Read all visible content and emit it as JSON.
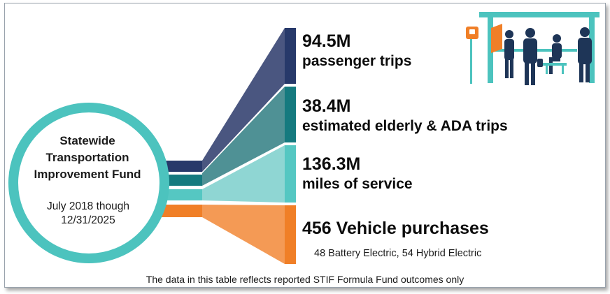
{
  "colors": {
    "circle_ring": "#4cc3be",
    "band_1": "#27396a",
    "band_2": "#157a7f",
    "band_3": "#55c7c2",
    "band_4": "#f07f27",
    "fill_1": "#4a5680",
    "fill_2": "#4f9195",
    "fill_3": "#8fd6d3",
    "fill_4": "#f49a55",
    "shelter": "#4cc3be",
    "sign": "#f07f27",
    "people": "#1e3557"
  },
  "hub": {
    "title_lines": [
      "Statewide",
      "Transportation",
      "Improvement Fund"
    ],
    "period_lines": [
      "July 2018 though",
      "12/31/2025"
    ]
  },
  "stats": [
    {
      "value": "94.5M",
      "label": "passenger trips"
    },
    {
      "value": "38.4M",
      "label": "estimated elderly & ADA trips"
    },
    {
      "value": "136.3M",
      "label": "miles of service"
    },
    {
      "value": "456 Vehicle purchases",
      "label": "",
      "sub": "48 Battery Electric, 54 Hybrid Electric"
    }
  ],
  "illustration": {
    "name": "bus-stop-illustration",
    "sign_icon": "bus-icon"
  },
  "footnote": "The data in this table reflects reported STIF Formula Fund outcomes only"
}
